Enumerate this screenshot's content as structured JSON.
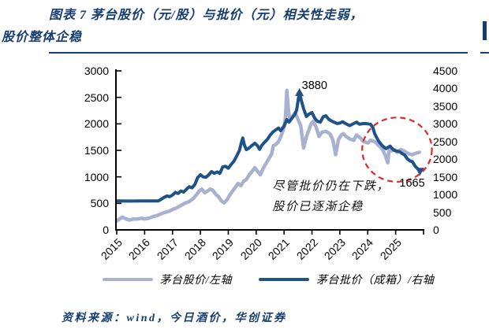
{
  "title": {
    "line1": "图表 7  茅台股价（元/股）与批价（元）相关性走弱，",
    "line2": "股价整体企稳"
  },
  "source": {
    "text": "资料来源：wind，今日酒价，华创证券"
  },
  "colors": {
    "title_navy": "#163d70",
    "stock_line": "#a8b2d0",
    "batch_line": "#1e5288",
    "highlight_red": "#d92b2b",
    "axis_black": "#000000"
  },
  "chart_data": {
    "type": "line",
    "xlim": [
      2015,
      2026
    ],
    "x_ticks": [
      "2015",
      "2016",
      "2017",
      "2018",
      "2019",
      "2020",
      "2021",
      "2022",
      "2023",
      "2024",
      "2025"
    ],
    "left_axis": {
      "max": 3000,
      "ticks": [
        0,
        500,
        1000,
        1500,
        2000,
        2500,
        3000
      ]
    },
    "right_axis": {
      "max": 4500,
      "ticks": [
        0,
        500,
        1000,
        1500,
        2000,
        2500,
        3000,
        3500,
        4000,
        4500
      ]
    },
    "legend_position": "bottom",
    "series": [
      {
        "key": "stock-price",
        "name": "茅台股价/左轴",
        "axis": "left",
        "color": "#a8b2d0",
        "width": 4.5,
        "points": [
          [
            2015.0,
            165
          ],
          [
            2015.1,
            205
          ],
          [
            2015.2,
            240
          ],
          [
            2015.3,
            215
          ],
          [
            2015.45,
            185
          ],
          [
            2015.6,
            205
          ],
          [
            2015.75,
            205
          ],
          [
            2015.9,
            220
          ],
          [
            2016.0,
            205
          ],
          [
            2016.15,
            220
          ],
          [
            2016.3,
            250
          ],
          [
            2016.5,
            280
          ],
          [
            2016.7,
            325
          ],
          [
            2016.9,
            355
          ],
          [
            2017.0,
            385
          ],
          [
            2017.15,
            415
          ],
          [
            2017.3,
            460
          ],
          [
            2017.45,
            505
          ],
          [
            2017.6,
            535
          ],
          [
            2017.75,
            595
          ],
          [
            2017.85,
            655
          ],
          [
            2017.95,
            730
          ],
          [
            2018.05,
            770
          ],
          [
            2018.15,
            700
          ],
          [
            2018.25,
            730
          ],
          [
            2018.35,
            770
          ],
          [
            2018.45,
            745
          ],
          [
            2018.55,
            670
          ],
          [
            2018.65,
            625
          ],
          [
            2018.75,
            550
          ],
          [
            2018.85,
            510
          ],
          [
            2018.95,
            565
          ],
          [
            2019.05,
            655
          ],
          [
            2019.15,
            730
          ],
          [
            2019.25,
            800
          ],
          [
            2019.35,
            875
          ],
          [
            2019.45,
            835
          ],
          [
            2019.55,
            920
          ],
          [
            2019.65,
            950
          ],
          [
            2019.75,
            1040
          ],
          [
            2019.85,
            1100
          ],
          [
            2019.95,
            1175
          ],
          [
            2020.05,
            1100
          ],
          [
            2020.15,
            1040
          ],
          [
            2020.25,
            1160
          ],
          [
            2020.35,
            1250
          ],
          [
            2020.45,
            1340
          ],
          [
            2020.55,
            1430
          ],
          [
            2020.62,
            1590
          ],
          [
            2020.7,
            1610
          ],
          [
            2020.8,
            1665
          ],
          [
            2020.9,
            1780
          ],
          [
            2021.0,
            1935
          ],
          [
            2021.05,
            2110
          ],
          [
            2021.1,
            2630
          ],
          [
            2021.17,
            2185
          ],
          [
            2021.22,
            2080
          ],
          [
            2021.3,
            2140
          ],
          [
            2021.4,
            2215
          ],
          [
            2021.5,
            2080
          ],
          [
            2021.6,
            1960
          ],
          [
            2021.7,
            1545
          ],
          [
            2021.8,
            1760
          ],
          [
            2021.9,
            1900
          ],
          [
            2021.97,
            2000
          ],
          [
            2022.05,
            2050
          ],
          [
            2022.15,
            1930
          ],
          [
            2022.25,
            1765
          ],
          [
            2022.35,
            1840
          ],
          [
            2022.5,
            1860
          ],
          [
            2022.65,
            1810
          ],
          [
            2022.75,
            1695
          ],
          [
            2022.85,
            1420
          ],
          [
            2022.95,
            1700
          ],
          [
            2023.05,
            1790
          ],
          [
            2023.12,
            1815
          ],
          [
            2023.22,
            1765
          ],
          [
            2023.35,
            1715
          ],
          [
            2023.5,
            1690
          ],
          [
            2023.6,
            1790
          ],
          [
            2023.72,
            1740
          ],
          [
            2023.85,
            1665
          ],
          [
            2024.0,
            1640
          ],
          [
            2024.1,
            1690
          ],
          [
            2024.25,
            1665
          ],
          [
            2024.35,
            1615
          ],
          [
            2024.5,
            1540
          ],
          [
            2024.62,
            1420
          ],
          [
            2024.72,
            1265
          ],
          [
            2024.77,
            1540
          ],
          [
            2024.85,
            1490
          ],
          [
            2024.95,
            1515
          ],
          [
            2025.05,
            1465
          ],
          [
            2025.18,
            1515
          ],
          [
            2025.3,
            1490
          ],
          [
            2025.45,
            1440
          ],
          [
            2025.58,
            1415
          ],
          [
            2025.7,
            1440
          ],
          [
            2025.85,
            1465
          ]
        ],
        "markers": []
      },
      {
        "key": "batch-price",
        "name": "茅台批价（成箱）/右轴",
        "axis": "right",
        "color": "#1e5288",
        "width": 4,
        "points": [
          [
            2015.0,
            820
          ],
          [
            2015.3,
            815
          ],
          [
            2015.6,
            815
          ],
          [
            2015.9,
            820
          ],
          [
            2016.2,
            820
          ],
          [
            2016.5,
            820
          ],
          [
            2016.6,
            870
          ],
          [
            2016.7,
            920
          ],
          [
            2016.8,
            960
          ],
          [
            2016.9,
            940
          ],
          [
            2017.0,
            985
          ],
          [
            2017.1,
            1060
          ],
          [
            2017.2,
            1030
          ],
          [
            2017.3,
            1100
          ],
          [
            2017.4,
            1070
          ],
          [
            2017.5,
            1150
          ],
          [
            2017.6,
            1220
          ],
          [
            2017.7,
            1190
          ],
          [
            2017.8,
            1280
          ],
          [
            2017.9,
            1480
          ],
          [
            2018.0,
            1560
          ],
          [
            2018.1,
            1500
          ],
          [
            2018.2,
            1490
          ],
          [
            2018.3,
            1560
          ],
          [
            2018.4,
            1650
          ],
          [
            2018.5,
            1600
          ],
          [
            2018.6,
            1640
          ],
          [
            2018.7,
            1600
          ],
          [
            2018.8,
            1780
          ],
          [
            2018.9,
            1800
          ],
          [
            2019.0,
            1745
          ],
          [
            2019.1,
            1850
          ],
          [
            2019.2,
            1940
          ],
          [
            2019.3,
            2090
          ],
          [
            2019.4,
            2250
          ],
          [
            2019.48,
            2500
          ],
          [
            2019.52,
            2600
          ],
          [
            2019.58,
            2390
          ],
          [
            2019.65,
            2270
          ],
          [
            2019.75,
            2320
          ],
          [
            2019.85,
            2390
          ],
          [
            2019.95,
            2450
          ],
          [
            2020.05,
            2380
          ],
          [
            2020.12,
            2280
          ],
          [
            2020.2,
            2390
          ],
          [
            2020.3,
            2480
          ],
          [
            2020.4,
            2560
          ],
          [
            2020.5,
            2680
          ],
          [
            2020.6,
            2770
          ],
          [
            2020.7,
            2830
          ],
          [
            2020.8,
            2880
          ],
          [
            2020.88,
            2810
          ],
          [
            2021.0,
            2940
          ],
          [
            2021.1,
            3120
          ],
          [
            2021.18,
            3050
          ],
          [
            2021.28,
            3160
          ],
          [
            2021.38,
            3260
          ],
          [
            2021.45,
            3390
          ],
          [
            2021.5,
            3650
          ],
          [
            2021.55,
            3880
          ],
          [
            2021.62,
            3660
          ],
          [
            2021.7,
            3430
          ],
          [
            2021.8,
            3210
          ],
          [
            2021.9,
            3280
          ],
          [
            2022.0,
            3320
          ],
          [
            2022.1,
            3160
          ],
          [
            2022.2,
            3070
          ],
          [
            2022.3,
            3050
          ],
          [
            2022.4,
            3200
          ],
          [
            2022.5,
            3230
          ],
          [
            2022.6,
            3130
          ],
          [
            2022.75,
            3060
          ],
          [
            2022.9,
            3010
          ],
          [
            2023.0,
            3020
          ],
          [
            2023.1,
            3060
          ],
          [
            2023.2,
            3010
          ],
          [
            2023.35,
            2950
          ],
          [
            2023.5,
            3010
          ],
          [
            2023.6,
            3050
          ],
          [
            2023.7,
            2990
          ],
          [
            2023.85,
            3010
          ],
          [
            2024.0,
            3000
          ],
          [
            2024.1,
            2990
          ],
          [
            2024.18,
            2900
          ],
          [
            2024.25,
            2720
          ],
          [
            2024.32,
            2610
          ],
          [
            2024.4,
            2500
          ],
          [
            2024.5,
            2400
          ],
          [
            2024.57,
            2350
          ],
          [
            2024.65,
            2300
          ],
          [
            2024.72,
            2330
          ],
          [
            2024.8,
            2370
          ],
          [
            2024.88,
            2300
          ],
          [
            2024.95,
            2250
          ],
          [
            2025.05,
            2230
          ],
          [
            2025.15,
            2210
          ],
          [
            2025.25,
            2150
          ],
          [
            2025.32,
            2120
          ],
          [
            2025.42,
            2010
          ],
          [
            2025.52,
            1950
          ],
          [
            2025.6,
            1930
          ],
          [
            2025.7,
            1800
          ],
          [
            2025.78,
            1740
          ],
          [
            2025.87,
            1665
          ]
        ],
        "markers": [
          {
            "key": "peak",
            "year": 2021.55,
            "value": 3880,
            "label": "3880",
            "direction": "up",
            "label_position": "above"
          },
          {
            "key": "end",
            "year": 2025.87,
            "value": 1665,
            "label": "1665",
            "direction": "down",
            "label_position": "below"
          }
        ]
      }
    ],
    "annotations": [
      {
        "year": 2020.58,
        "value": 930,
        "axis": "left",
        "lines": [
          "尽管批价仍在下跌，",
          "股价已逐渐企稳"
        ]
      }
    ],
    "highlight_ellipse": {
      "center_year": 2025.05,
      "center_value": 2270,
      "axis": "right",
      "radius_years": 1.25,
      "radius_value": 910,
      "color": "#d92b2b"
    }
  }
}
